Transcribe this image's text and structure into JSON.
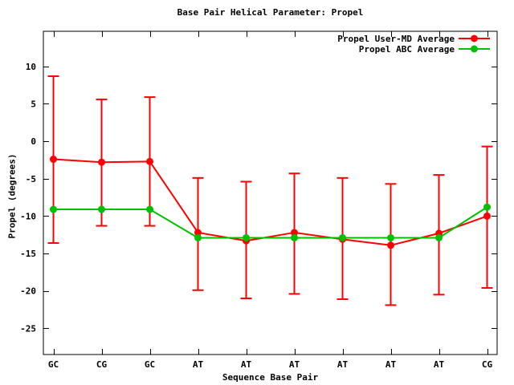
{
  "chart_data": {
    "type": "line",
    "title": "Base Pair Helical Parameter: Propel",
    "xlabel": "Sequence Base Pair",
    "ylabel": "Propel (degrees)",
    "categories": [
      "GC",
      "CG",
      "GC",
      "AT",
      "AT",
      "AT",
      "AT",
      "AT",
      "AT",
      "CG"
    ],
    "yticks": [
      10,
      5,
      0,
      -5,
      -10,
      -15,
      -20,
      -25
    ],
    "ylim": [
      -28.5,
      14.7
    ],
    "grid": false,
    "legend_position": "top-right-inside",
    "axis_color": "#000000",
    "background_color": "#ffffff",
    "series": [
      {
        "name": "Propel User-MD Average",
        "color": "#ff0000",
        "marker": "filled-circle",
        "has_error_bars": true,
        "values": [
          -2.4,
          -2.8,
          -2.7,
          -12.2,
          -13.3,
          -12.2,
          -13.1,
          -13.9,
          -12.3,
          -10.0
        ],
        "error_top": [
          8.7,
          5.6,
          5.9,
          -4.9,
          -5.4,
          -4.3,
          -4.9,
          -5.7,
          -4.5,
          -0.7
        ],
        "error_bottom": [
          -13.6,
          -11.3,
          -11.3,
          -19.9,
          -21.0,
          -20.4,
          -21.1,
          -21.9,
          -20.5,
          -19.6
        ]
      },
      {
        "name": "Propel ABC Average",
        "color": "#00c000",
        "marker": "filled-circle",
        "has_error_bars": false,
        "values": [
          -9.1,
          -9.1,
          -9.1,
          -12.9,
          -12.9,
          -12.9,
          -12.9,
          -12.9,
          -12.9,
          -8.8
        ]
      }
    ]
  }
}
